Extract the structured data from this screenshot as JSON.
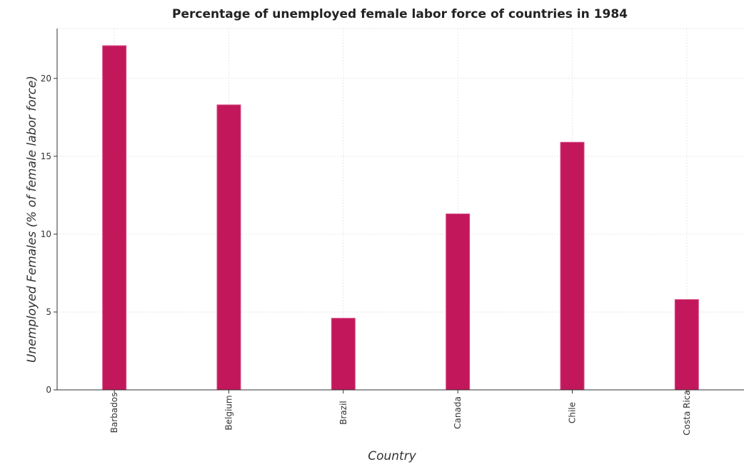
{
  "chart_data": {
    "type": "bar",
    "title": "Percentage of unemployed female labor force of countries in 1984",
    "xlabel": "Country",
    "ylabel": "Unemployed Females (% of female labor force)",
    "categories": [
      "Barbados",
      "Belgium",
      "Brazil",
      "Canada",
      "Chile",
      "Costa Rica"
    ],
    "values": [
      22.1,
      18.3,
      4.6,
      11.3,
      15.9,
      5.8
    ],
    "yticks": [
      "0",
      "5",
      "10",
      "15",
      "20"
    ],
    "ylim": [
      0,
      23.2
    ],
    "grid": true,
    "legend": "none",
    "bar_color": "#c2185b",
    "bar_stroke": "#d94e87"
  }
}
